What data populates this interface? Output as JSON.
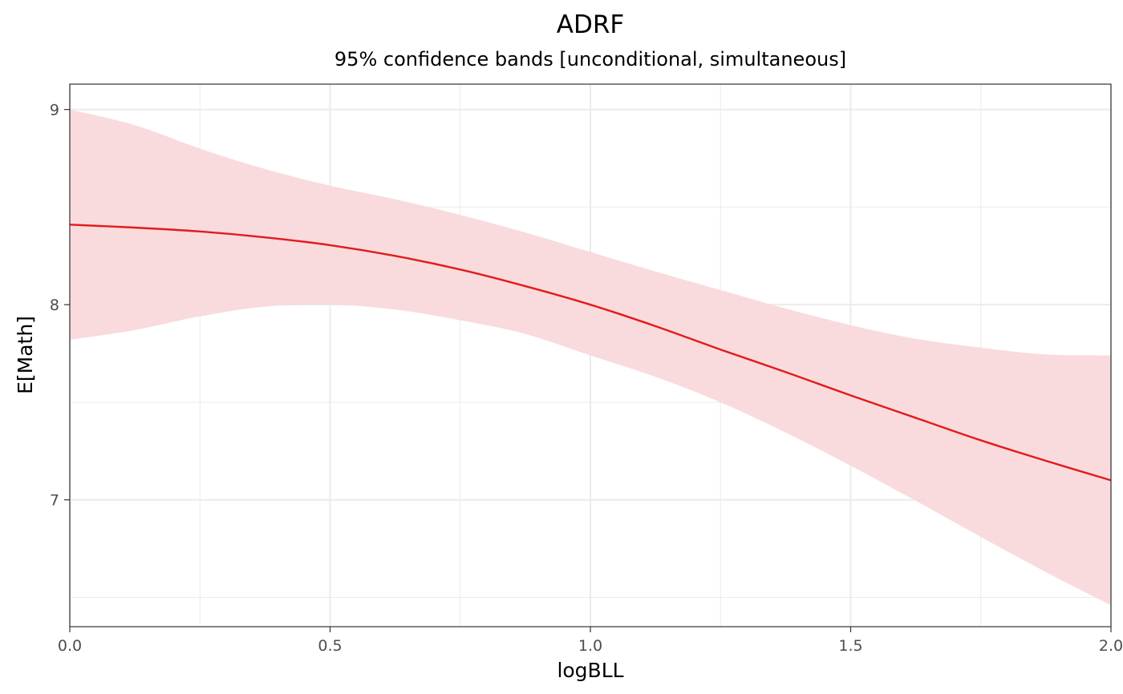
{
  "chart_data": {
    "type": "line",
    "title": "ADRF",
    "subtitle": "95% confidence bands [unconditional, simultaneous]",
    "xlabel": "logBLL",
    "ylabel": "E[Math]",
    "xlim": [
      0,
      2
    ],
    "ylim": [
      6.35,
      9.13
    ],
    "x_ticks": [
      0,
      0.5,
      1,
      1.5,
      2
    ],
    "x_tick_labels": [
      "0.0",
      "0.5",
      "1.0",
      "1.5",
      "2.0"
    ],
    "y_ticks": [
      7,
      8,
      9
    ],
    "y_tick_labels": [
      "7",
      "8",
      "9"
    ],
    "grid": true,
    "legend": "none",
    "colors": {
      "line": "#e31a1c",
      "band": "#f9d9db",
      "grid": "#ebebeb",
      "border": "#333333"
    },
    "series": [
      {
        "x": [
          0,
          0.125,
          0.25,
          0.375,
          0.5,
          0.625,
          0.75,
          0.875,
          1,
          1.125,
          1.25,
          1.375,
          1.5,
          1.625,
          1.75,
          1.875,
          2
        ],
        "estimate": [
          8.41,
          8.395,
          8.375,
          8.345,
          8.305,
          8.25,
          8.18,
          8.095,
          8.0,
          7.89,
          7.77,
          7.655,
          7.535,
          7.42,
          7.305,
          7.2,
          7.1
        ],
        "lower": [
          7.82,
          7.87,
          7.94,
          7.99,
          8.0,
          7.975,
          7.92,
          7.85,
          7.74,
          7.63,
          7.5,
          7.345,
          7.175,
          6.995,
          6.81,
          6.63,
          6.46
        ],
        "upper": [
          9.0,
          8.92,
          8.8,
          8.695,
          8.61,
          8.54,
          8.46,
          8.37,
          8.27,
          8.17,
          8.075,
          7.98,
          7.895,
          7.825,
          7.78,
          7.745,
          7.74
        ]
      }
    ]
  }
}
